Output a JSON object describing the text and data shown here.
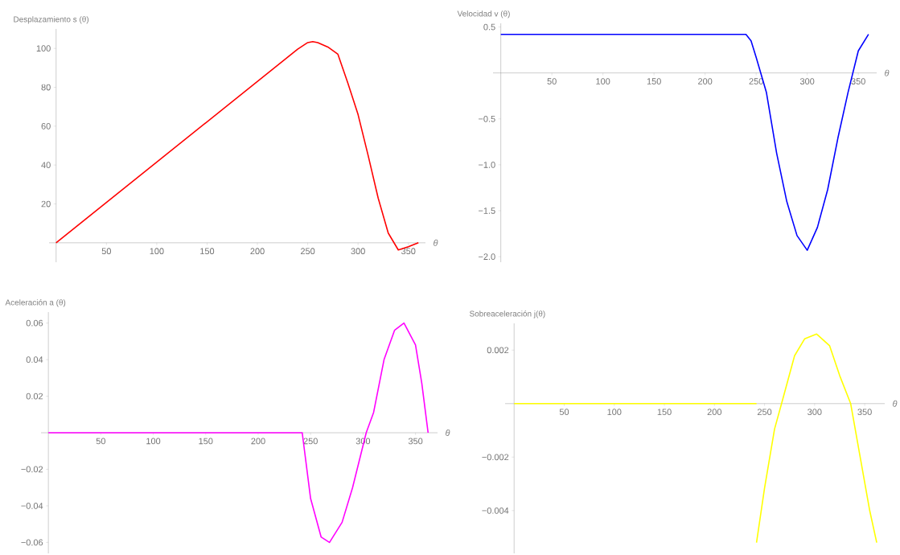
{
  "chart_data": [
    {
      "type": "line",
      "ylabel": "Desplazamiento    s (θ)",
      "xlabel": "θ",
      "xlim": [
        -7,
        367
      ],
      "ylim": [
        -10,
        110
      ],
      "xticks": [
        50,
        100,
        150,
        200,
        250,
        300,
        350
      ],
      "yticks": [
        20,
        40,
        60,
        80,
        100
      ],
      "series": [
        {
          "color": "#ff0000",
          "x": [
            0,
            200,
            240,
            250,
            255,
            260,
            270,
            280,
            290,
            300,
            310,
            320,
            330,
            340,
            350,
            360
          ],
          "values": [
            0,
            83,
            99.6,
            103,
            103.5,
            103,
            100.7,
            97,
            82,
            66,
            45,
            23,
            5,
            -3.7,
            -2,
            0
          ]
        }
      ]
    },
    {
      "type": "line",
      "ylabel": "Velocidad   v (θ)",
      "xlabel": "θ",
      "xlim": [
        -7.6,
        368
      ],
      "ylim": [
        -2.06,
        0.54
      ],
      "xticks": [
        50,
        100,
        150,
        200,
        250,
        300,
        350
      ],
      "yticks": [
        0.5,
        {
          "value": -0.5,
          "label": "−0.5"
        },
        {
          "value": -1.0,
          "label": "−1.0"
        },
        {
          "value": -1.5,
          "label": "−1.5"
        },
        {
          "value": -2.0,
          "label": "−2.0"
        }
      ],
      "series": [
        {
          "color": "#0000ff",
          "x": [
            0,
            240,
            245,
            250,
            260,
            270,
            280,
            290,
            300,
            310,
            320,
            330,
            340,
            350,
            360
          ],
          "values": [
            0.42,
            0.42,
            0.35,
            0.17,
            -0.21,
            -0.87,
            -1.4,
            -1.77,
            -1.93,
            -1.68,
            -1.27,
            -0.71,
            -0.21,
            0.24,
            0.42
          ]
        }
      ]
    },
    {
      "type": "line",
      "ylabel": "Aceleración     a (θ)",
      "xlabel": "θ",
      "xlim": [
        -7,
        371
      ],
      "ylim": [
        -0.066,
        0.066
      ],
      "xticks": [
        50,
        100,
        150,
        200,
        250,
        300,
        350
      ],
      "yticks": [
        0.02,
        0.04,
        0.06,
        {
          "value": -0.02,
          "label": "−0.02"
        },
        {
          "value": -0.04,
          "label": "−0.04"
        },
        {
          "value": -0.06,
          "label": "−0.06"
        }
      ],
      "series": [
        {
          "color": "#ff00ff",
          "x": [
            0,
            242,
            250,
            260,
            268,
            280,
            290,
            303,
            310,
            320,
            330,
            339,
            350,
            356,
            362
          ],
          "values": [
            0,
            0,
            -0.036,
            -0.057,
            -0.06,
            -0.049,
            -0.03,
            0,
            0.011,
            0.04,
            0.056,
            0.06,
            0.048,
            0.027,
            0
          ]
        }
      ]
    },
    {
      "type": "line",
      "ylabel": "Sobreaceleración     j(θ)",
      "xlabel": "θ",
      "xlim": [
        -9,
        370
      ],
      "ylim": [
        -0.0056,
        0.003
      ],
      "xticks": [
        50,
        100,
        150,
        200,
        250,
        300,
        350
      ],
      "yticks": [
        0.002,
        {
          "value": -0.002,
          "label": "−0.002"
        },
        {
          "value": -0.004,
          "label": "−0.004"
        }
      ],
      "series": [
        {
          "color": "#ffff00",
          "x": [
            0,
            242
          ],
          "values": [
            0,
            0
          ]
        },
        {
          "color": "#ffff00",
          "x": [
            242,
            250,
            260,
            267,
            280,
            290,
            302,
            315,
            325,
            336,
            345,
            355,
            362
          ],
          "values": [
            -0.0052,
            -0.00316,
            -0.00095,
            0,
            0.00179,
            0.00242,
            0.0026,
            0.00216,
            0.00105,
            0,
            -0.0019,
            -0.004,
            -0.0052
          ]
        }
      ]
    }
  ]
}
